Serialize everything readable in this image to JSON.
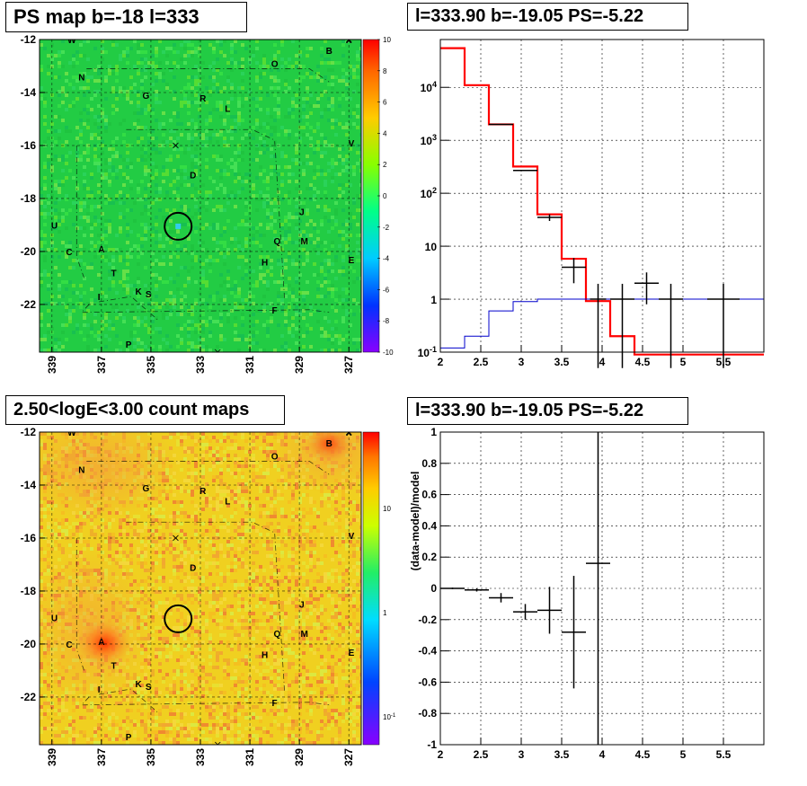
{
  "colors": {
    "map_green": "#22cc44",
    "count_yellow": "#f0d020",
    "count_orange": "#f08a30",
    "model_red": "#ff0000",
    "background_blue": "#0000cc",
    "data_black": "#000000"
  },
  "panels": {
    "ps_map": {
      "title": "PS map b=-18 l=333"
    },
    "spectrum": {
      "title": "l=333.90 b=-19.05 PS=-5.22"
    },
    "count_map": {
      "title": "2.50<logE<3.00 count maps"
    },
    "residual": {
      "title": "l=333.90 b=-19.05 PS=-5.22",
      "ylabel": "(data-model)/model"
    }
  },
  "source_labels": [
    {
      "name": "W",
      "l": 338.2,
      "b": -12.0
    },
    {
      "name": "X",
      "l": 327.0,
      "b": -12.0
    },
    {
      "name": "B",
      "l": 327.8,
      "b": -12.4
    },
    {
      "name": "O",
      "l": 330.0,
      "b": -12.9
    },
    {
      "name": "N",
      "l": 337.8,
      "b": -13.4
    },
    {
      "name": "G",
      "l": 335.2,
      "b": -14.1
    },
    {
      "name": "R",
      "l": 332.9,
      "b": -14.2
    },
    {
      "name": "L",
      "l": 331.9,
      "b": -14.6
    },
    {
      "name": "V",
      "l": 326.9,
      "b": -15.9
    },
    {
      "name": "D",
      "l": 333.3,
      "b": -17.1
    },
    {
      "name": "J",
      "l": 328.9,
      "b": -18.5
    },
    {
      "name": "U",
      "l": 338.9,
      "b": -19.0
    },
    {
      "name": "Q",
      "l": 329.9,
      "b": -19.6
    },
    {
      "name": "M",
      "l": 328.8,
      "b": -19.6
    },
    {
      "name": "C",
      "l": 338.3,
      "b": -20.0
    },
    {
      "name": "A",
      "l": 337.0,
      "b": -19.9
    },
    {
      "name": "E",
      "l": 326.9,
      "b": -20.3
    },
    {
      "name": "H",
      "l": 330.4,
      "b": -20.4
    },
    {
      "name": "T",
      "l": 336.5,
      "b": -20.8
    },
    {
      "name": "K",
      "l": 335.5,
      "b": -21.5
    },
    {
      "name": "S",
      "l": 335.1,
      "b": -21.6
    },
    {
      "name": "I",
      "l": 337.1,
      "b": -21.7
    },
    {
      "name": "F",
      "l": 330.0,
      "b": -22.2
    },
    {
      "name": "P",
      "l": 335.9,
      "b": -23.5
    }
  ],
  "maps": {
    "x_ticks": [
      "339",
      "337",
      "335",
      "333",
      "331",
      "329",
      "327"
    ],
    "y_ticks": [
      "-12",
      "-14",
      "-16",
      "-18",
      "-20",
      "-22"
    ],
    "ps_palette_labels": [
      "10",
      "8",
      "6",
      "4",
      "2",
      "0",
      "-2",
      "-4",
      "-6",
      "-8",
      "-10"
    ],
    "count_palette_labels": [
      "10",
      "1",
      "10^-1"
    ]
  },
  "chart_data": [
    {
      "type": "heatmap",
      "title": "PS map b=-18 l=333",
      "xlim": [
        339.5,
        326.5
      ],
      "ylim": [
        -23.8,
        -12.0
      ],
      "zlim": [
        -10,
        10
      ],
      "candidate": {
        "l": 333.9,
        "b": -19.05,
        "ps": -5.22
      }
    },
    {
      "type": "line",
      "title": "l=333.90 b=-19.05 PS=-5.22",
      "xlim": [
        2,
        6
      ],
      "ylim": [
        0.1,
        80000
      ],
      "ylog": true,
      "x_ticks": [
        "2",
        "2.5",
        "3",
        "3.5",
        "4",
        "4.5",
        "5",
        "5.5"
      ],
      "y_ticks": [
        "10^-1",
        "1",
        "10",
        "10^2",
        "10^3",
        "10^4"
      ],
      "series": [
        {
          "bins": [
            [
              2.0,
              2.3,
              55000
            ],
            [
              2.3,
              2.6,
              11000
            ],
            [
              2.6,
              2.9,
              2000
            ],
            [
              2.9,
              3.2,
              320
            ],
            [
              3.2,
              3.5,
              40
            ],
            [
              3.5,
              3.8,
              5.8
            ],
            [
              3.8,
              4.1,
              0.92
            ],
            [
              4.1,
              4.4,
              0.2
            ],
            [
              4.4,
              6.0,
              0.09
            ]
          ]
        },
        {
          "bins": [
            [
              2.0,
              2.3,
              0.12
            ],
            [
              2.3,
              2.6,
              0.2
            ],
            [
              2.6,
              2.9,
              0.6
            ],
            [
              2.9,
              3.2,
              0.9
            ],
            [
              3.2,
              6.0,
              1.0
            ]
          ]
        },
        {
          "points": [
            [
              2.75,
              2000,
              0.15,
              0
            ],
            [
              3.05,
              270,
              0.15,
              0
            ],
            [
              3.35,
              35,
              0.15,
              5
            ],
            [
              3.65,
              4,
              0.15,
              2
            ],
            [
              3.95,
              1,
              0.1,
              0.95
            ],
            [
              4.25,
              1,
              0.15,
              0.95
            ],
            [
              4.55,
              2,
              0.15,
              1.2
            ],
            [
              4.85,
              1,
              0.15,
              0.95
            ],
            [
              5.5,
              1,
              0.2,
              0.95
            ]
          ]
        }
      ]
    },
    {
      "type": "heatmap",
      "title": "2.50<logE<3.00 count maps",
      "xlim": [
        339.5,
        326.5
      ],
      "ylim": [
        -23.8,
        -12.0
      ],
      "zlog": true
    },
    {
      "type": "scatter",
      "title": "l=333.90 b=-19.05 PS=-5.22",
      "ylabel": "(data-model)/model",
      "xlim": [
        2,
        6
      ],
      "ylim": [
        -1,
        1
      ],
      "x_ticks": [
        "2",
        "2.5",
        "3",
        "3.5",
        "4",
        "4.5",
        "5",
        "5.5"
      ],
      "y_ticks": [
        "-1",
        "-0.8",
        "-0.6",
        "-0.4",
        "-0.2",
        "0",
        "0.2",
        "0.4",
        "0.6",
        "0.8",
        "1"
      ],
      "points": [
        {
          "x": 2.15,
          "y": 0.0,
          "xerr": 0.15,
          "yerr": 0.005
        },
        {
          "x": 2.45,
          "y": -0.01,
          "xerr": 0.15,
          "yerr": 0.01
        },
        {
          "x": 2.75,
          "y": -0.06,
          "xerr": 0.15,
          "yerr": 0.03
        },
        {
          "x": 3.05,
          "y": -0.15,
          "xerr": 0.15,
          "yerr": 0.05
        },
        {
          "x": 3.35,
          "y": -0.14,
          "xerr": 0.15,
          "yerr": 0.15
        },
        {
          "x": 3.65,
          "y": -0.28,
          "xerr": 0.15,
          "yerr": 0.36
        },
        {
          "x": 3.95,
          "y": 0.16,
          "xerr": 0.15,
          "yerr": 1.5
        }
      ]
    }
  ]
}
